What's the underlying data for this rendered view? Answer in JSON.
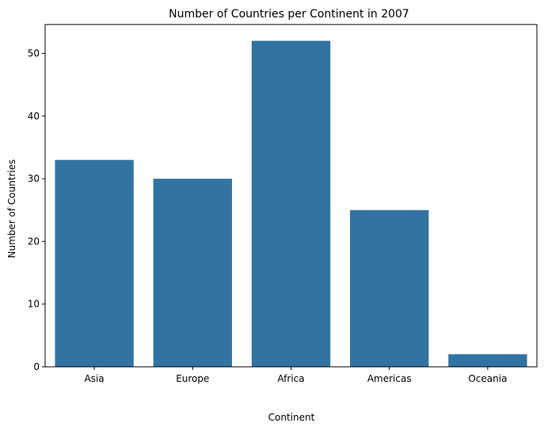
{
  "chart_data": {
    "type": "bar",
    "title": "Number of Countries per Continent in 2007",
    "xlabel": "Continent",
    "ylabel": "Number of Countries",
    "categories": [
      "Asia",
      "Europe",
      "Africa",
      "Americas",
      "Oceania"
    ],
    "values": [
      33,
      30,
      52,
      25,
      2
    ],
    "ylim": [
      0,
      54.6
    ],
    "yticks": [
      0,
      10,
      20,
      30,
      40,
      50
    ],
    "bar_color": "#3274a1",
    "grid": false,
    "legend": "none"
  }
}
